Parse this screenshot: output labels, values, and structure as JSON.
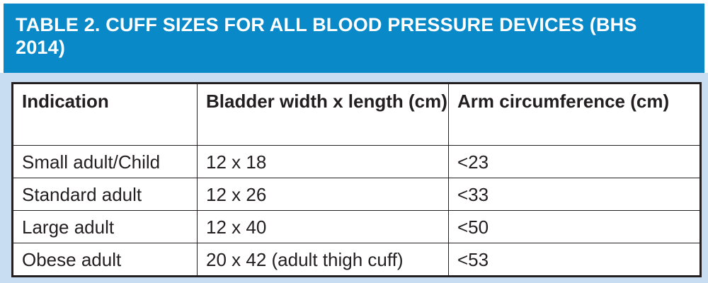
{
  "title": "TABLE 2. CUFF SIZES FOR ALL BLOOD PRESSURE DEVICES (BHS\n2014)",
  "table": {
    "columns": [
      "Indication",
      "Bladder width x length (cm)",
      "Arm circumference (cm)"
    ],
    "rows": [
      [
        "Small adult/Child",
        "12 x 18",
        "<23"
      ],
      [
        "Standard adult",
        "12 x 26",
        "<33"
      ],
      [
        "Large adult",
        "12 x 40",
        "<50"
      ],
      [
        "Obese adult",
        "20 x 42 (adult thigh cuff)",
        "<53"
      ]
    ]
  },
  "colors": {
    "banner_bg": "#0a89c9",
    "panel_bg": "#c8ddf1",
    "table_border": "#231f20",
    "text": "#231f20",
    "title_text": "#ffffff"
  }
}
